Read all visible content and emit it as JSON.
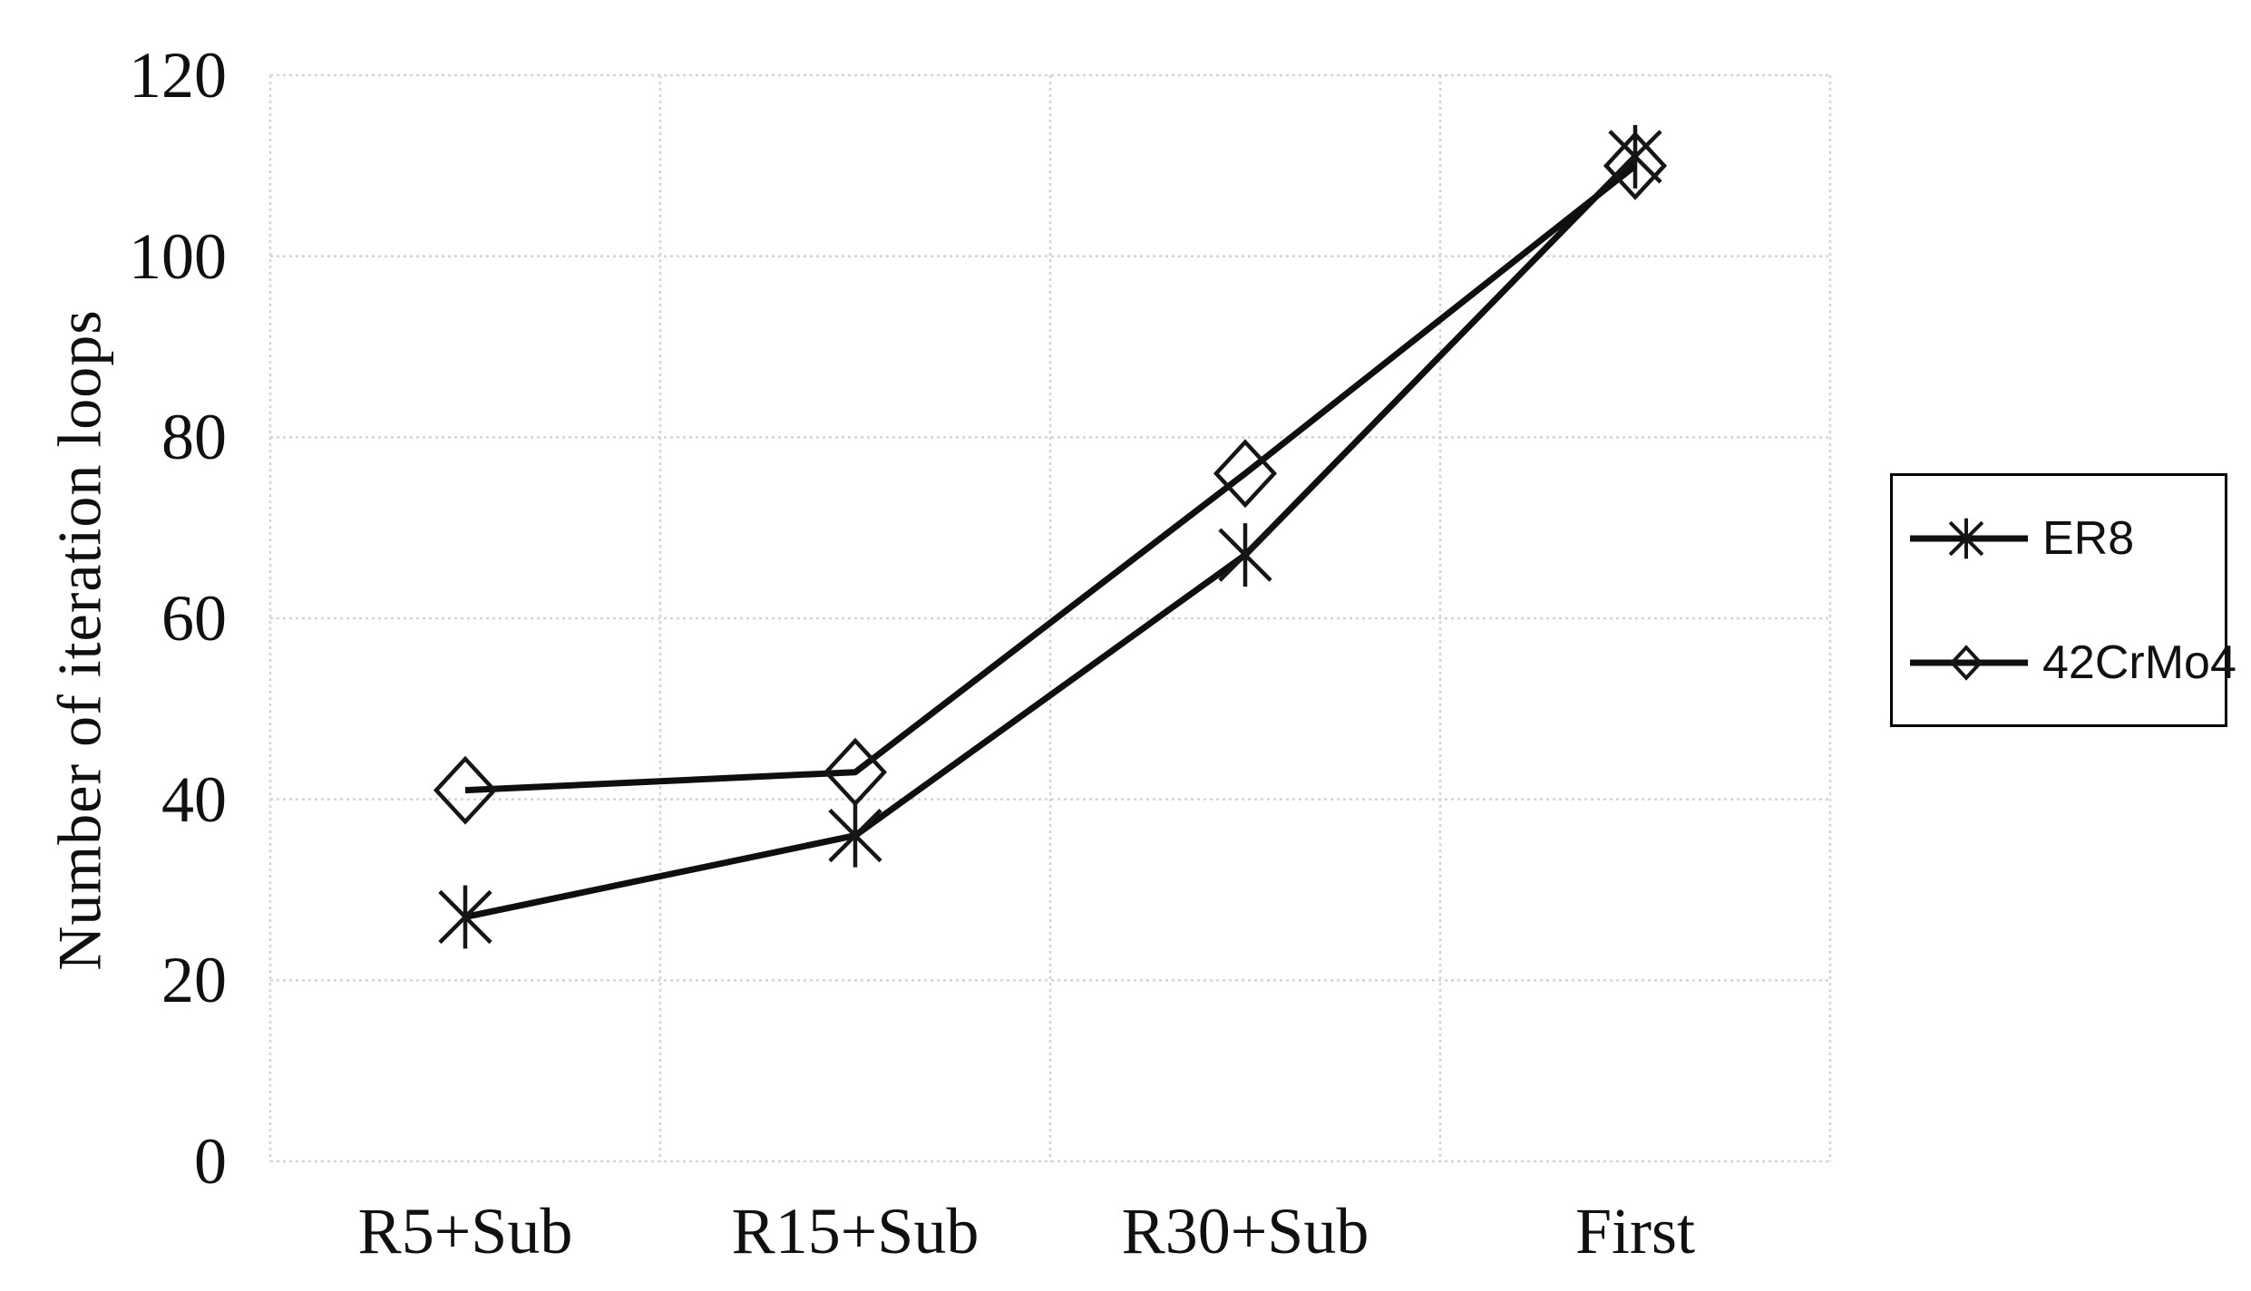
{
  "chart_data": {
    "type": "line",
    "title": "",
    "xlabel": "",
    "ylabel": "Number of iteration loops",
    "categories": [
      "R5+Sub",
      "R15+Sub",
      "R30+Sub",
      "First"
    ],
    "series": [
      {
        "name": "ER8",
        "marker": "asterisk",
        "values": [
          27,
          36,
          67,
          111
        ]
      },
      {
        "name": "42CrMo4",
        "marker": "diamond-open",
        "values": [
          41,
          43,
          76,
          110
        ]
      }
    ],
    "ylim": [
      0,
      120
    ],
    "y_ticks": [
      0,
      20,
      40,
      60,
      80,
      100,
      120
    ],
    "grid": true,
    "legend_position": "right",
    "colors": {
      "line": "#0f0f0f",
      "marker": "#161616",
      "gridline": "#d4d4d4",
      "text": "#101010",
      "legend_border": "#000000",
      "background": "#ffffff"
    }
  }
}
